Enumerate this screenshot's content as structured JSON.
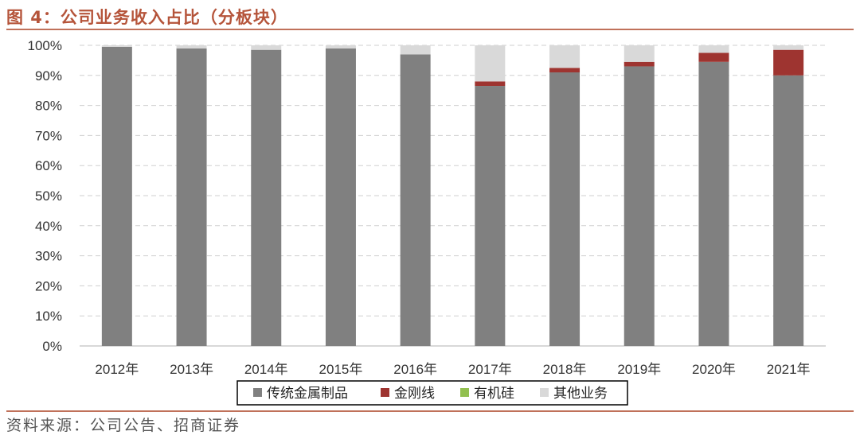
{
  "header": {
    "title": "图 4：公司业务收入占比（分板块）"
  },
  "footer": {
    "source": "资料来源：公司公告、招商证券"
  },
  "chart_data": {
    "type": "bar",
    "stacked": true,
    "categories": [
      "2012年",
      "2013年",
      "2014年",
      "2015年",
      "2016年",
      "2017年",
      "2018年",
      "2019年",
      "2020年",
      "2021年"
    ],
    "y_ticks": [
      "0%",
      "10%",
      "20%",
      "30%",
      "40%",
      "50%",
      "60%",
      "70%",
      "80%",
      "90%",
      "100%"
    ],
    "ylim": [
      0,
      100
    ],
    "y_unit": "%",
    "grid": true,
    "legend_position": "bottom",
    "series": [
      {
        "name": "传统金属制品",
        "color": "#808080",
        "values": [
          99.5,
          99,
          98.5,
          99,
          97,
          86.5,
          91,
          93,
          94.5,
          90
        ]
      },
      {
        "name": "金刚线",
        "color": "#9e3430",
        "values": [
          0,
          0,
          0,
          0,
          0,
          1.5,
          1.5,
          1.5,
          3,
          8.5
        ]
      },
      {
        "name": "有机硅",
        "color": "#92c050",
        "values": [
          0,
          0,
          0,
          0,
          0,
          0,
          0,
          0,
          0,
          0
        ]
      },
      {
        "name": "其他业务",
        "color": "#d9d9d9",
        "values": [
          0.5,
          1,
          1.5,
          1,
          3,
          12,
          7.5,
          5.5,
          2.5,
          1.5
        ]
      }
    ]
  }
}
